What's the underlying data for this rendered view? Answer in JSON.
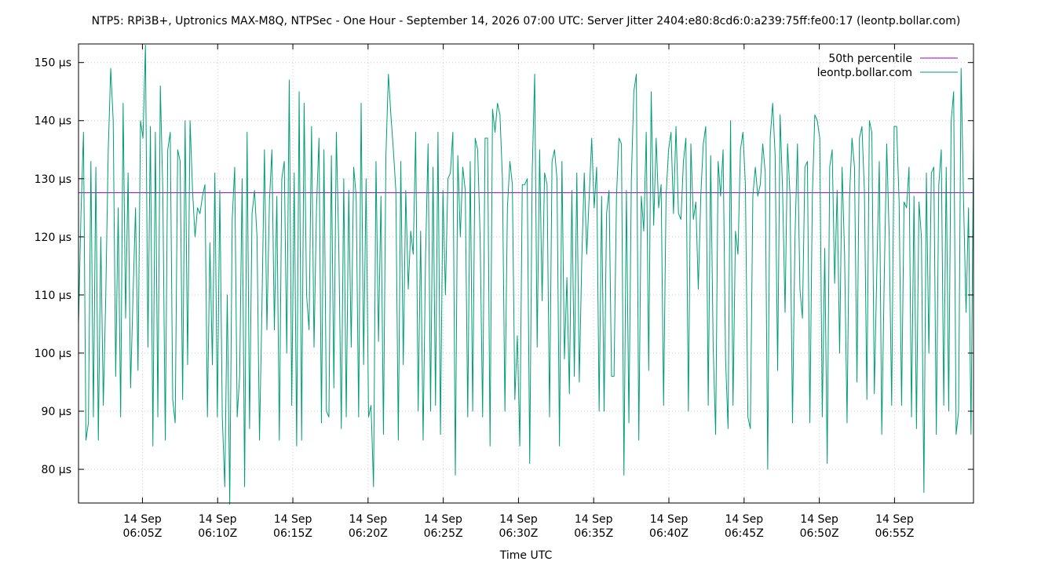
{
  "chart_data": {
    "type": "line",
    "title": "NTP5: RPi3B+, Uptronics MAX-M8Q, NTPSec - One Hour - September 14, 2026 07:00 UTC: Server Jitter 2404:e80:8cd6:0:a239:75ff:fe00:17 (leontp.bollar.com)",
    "xlabel": "Time UTC",
    "ylabel": "",
    "xlim": [
      "06:00:45Z",
      "06:60:15Z"
    ],
    "ylim": [
      74.2,
      153.2
    ],
    "y_unit": "µs",
    "grid": true,
    "legend_position": "top-right",
    "x_tick_labels": [
      {
        "at": "06:05Z",
        "date": "14 Sep",
        "time": "06:05Z"
      },
      {
        "at": "06:10Z",
        "date": "14 Sep",
        "time": "06:10Z"
      },
      {
        "at": "06:15Z",
        "date": "14 Sep",
        "time": "06:15Z"
      },
      {
        "at": "06:20Z",
        "date": "14 Sep",
        "time": "06:20Z"
      },
      {
        "at": "06:25Z",
        "date": "14 Sep",
        "time": "06:25Z"
      },
      {
        "at": "06:30Z",
        "date": "14 Sep",
        "time": "06:30Z"
      },
      {
        "at": "06:35Z",
        "date": "14 Sep",
        "time": "06:35Z"
      },
      {
        "at": "06:40Z",
        "date": "14 Sep",
        "time": "06:40Z"
      },
      {
        "at": "06:45Z",
        "date": "14 Sep",
        "time": "06:45Z"
      },
      {
        "at": "06:50Z",
        "date": "14 Sep",
        "time": "06:50Z"
      },
      {
        "at": "06:55Z",
        "date": "14 Sep",
        "time": "06:55Z"
      }
    ],
    "y_ticks": [
      80,
      90,
      100,
      110,
      120,
      130,
      140,
      150
    ],
    "y_tick_labels": [
      "80 µs",
      "90 µs",
      "100 µs",
      "110 µs",
      "120 µs",
      "130 µs",
      "140 µs",
      "150 µs"
    ],
    "series": [
      {
        "name": "50th percentile",
        "color": "#9400d3",
        "kind": "constant",
        "value": 127.6
      },
      {
        "name": "leontp.bollar.com",
        "color": "#009e73",
        "kind": "jitter",
        "x_start": "06:00:45Z",
        "x_end": "06:60:15Z",
        "values": [
          105,
          124,
          138,
          85,
          88,
          133,
          89,
          132,
          85,
          120,
          91,
          110,
          135,
          149,
          140,
          96,
          125,
          89,
          143,
          106,
          131,
          94,
          110,
          125,
          97,
          140,
          137,
          153,
          101,
          139,
          84,
          138,
          89,
          146,
          128,
          85,
          135,
          138,
          92,
          88,
          135,
          133,
          92,
          140,
          98,
          140,
          128,
          120,
          125,
          124,
          127,
          129,
          89,
          119,
          98,
          131,
          89,
          128,
          89,
          77,
          110,
          74,
          123,
          132,
          89,
          96,
          130,
          77,
          138,
          87,
          124,
          128,
          120,
          85,
          108,
          135,
          104,
          126,
          135,
          104,
          127,
          85,
          130,
          133,
          100,
          147,
          91,
          131,
          84,
          145,
          85,
          143,
          110,
          104,
          139,
          101,
          125,
          137,
          88,
          135,
          90,
          89,
          134,
          94,
          138,
          118,
          87,
          130,
          89,
          128,
          101,
          132,
          127,
          89,
          143,
          98,
          130,
          89,
          91,
          77,
          133,
          102,
          127,
          86,
          134,
          148,
          141,
          135,
          128,
          85,
          133,
          98,
          128,
          111,
          121,
          117,
          138,
          90,
          121,
          85,
          117,
          136,
          90,
          132,
          91,
          138,
          86,
          128,
          110,
          130,
          131,
          138,
          79,
          134,
          120,
          132,
          128,
          89,
          133,
          90,
          137,
          135,
          120,
          89,
          137,
          137,
          84,
          142,
          138,
          143,
          141,
          130,
          90,
          125,
          133,
          129,
          92,
          103,
          84,
          129,
          129,
          130,
          81,
          131,
          148,
          101,
          135,
          109,
          131,
          129,
          89,
          133,
          135,
          130,
          84,
          133,
          99,
          113,
          93,
          128,
          96,
          131,
          95,
          116,
          131,
          117,
          127,
          137,
          125,
          132,
          90,
          127,
          90,
          124,
          128,
          96,
          96,
          127,
          137,
          136,
          79,
          128,
          88,
          130,
          145,
          148,
          85,
          127,
          121,
          138,
          97,
          145,
          122,
          137,
          125,
          129,
          91,
          127,
          135,
          138,
          124,
          139,
          124,
          123,
          133,
          137,
          90,
          136,
          123,
          126,
          111,
          127,
          136,
          139,
          91,
          134,
          101,
          86,
          133,
          127,
          135,
          99,
          87,
          140,
          91,
          121,
          117,
          135,
          138,
          129,
          89,
          87,
          127,
          132,
          127,
          129,
          136,
          131,
          80,
          137,
          143,
          134,
          97,
          141,
          128,
          107,
          136,
          127,
          88,
          120,
          136,
          111,
          106,
          132,
          133,
          88,
          127,
          141,
          140,
          137,
          89,
          118,
          81,
          132,
          135,
          112,
          128,
          100,
          132,
          117,
          88,
          127,
          137,
          132,
          95,
          137,
          139,
          128,
          92,
          140,
          138,
          93,
          114,
          133,
          86,
          113,
          136,
          120,
          91,
          139,
          139,
          126,
          91,
          126,
          125,
          132,
          89,
          127,
          87,
          126,
          120,
          76,
          131,
          100,
          131,
          132,
          86,
          129,
          135,
          91,
          132,
          90,
          140,
          145,
          86,
          90,
          149,
          126,
          107,
          125,
          86,
          136
        ]
      }
    ]
  }
}
